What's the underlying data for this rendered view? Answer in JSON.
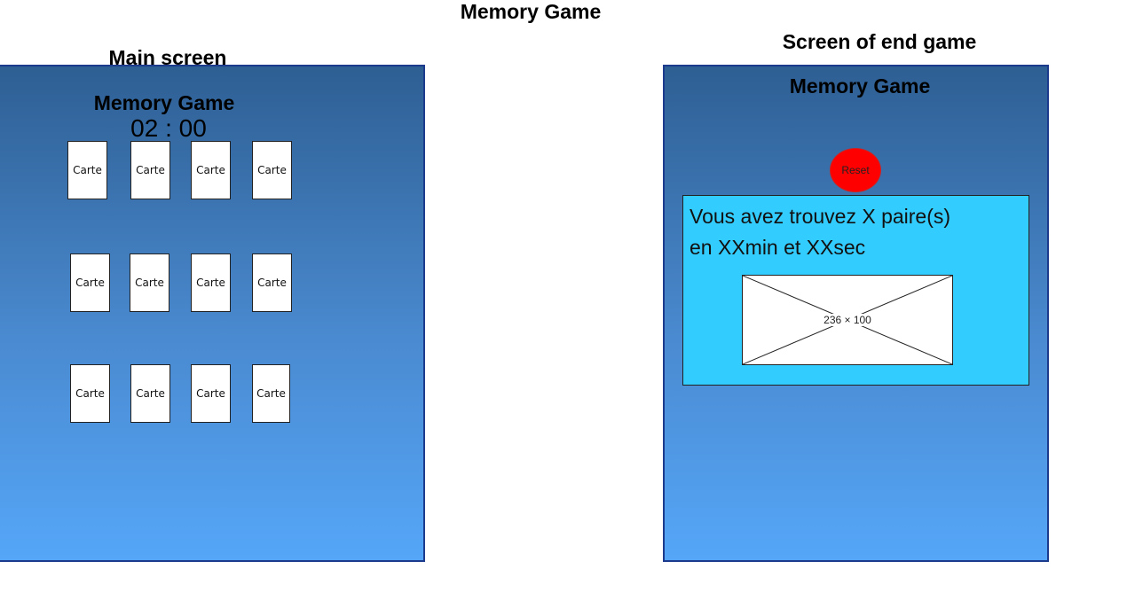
{
  "document_title": "Memory Game",
  "main_screen": {
    "caption": "Main screen",
    "app_title": "Memory Game",
    "timer": "02 : 00",
    "cards": [
      [
        "Carte",
        "Carte",
        "Carte",
        "Carte"
      ],
      [
        "Carte",
        "Carte",
        "Carte",
        "Carte"
      ],
      [
        "Carte",
        "Carte",
        "Carte",
        "Carte"
      ]
    ]
  },
  "end_screen": {
    "caption": "Screen of end game",
    "app_title": "Memory Game",
    "reset_label": "Reset",
    "result_line_1": "Vous avez trouvez X paire(s)",
    "result_line_2": "en XXmin et XXsec",
    "image_placeholder_label": "236 × 100"
  },
  "colors": {
    "screen_border": "#1c3b8c",
    "screen_gradient_top": "#2e5f93",
    "screen_gradient_bottom": "#55a6f8",
    "result_panel": "#33ccff",
    "reset_button": "#ff0000",
    "card": "#ffffff"
  }
}
